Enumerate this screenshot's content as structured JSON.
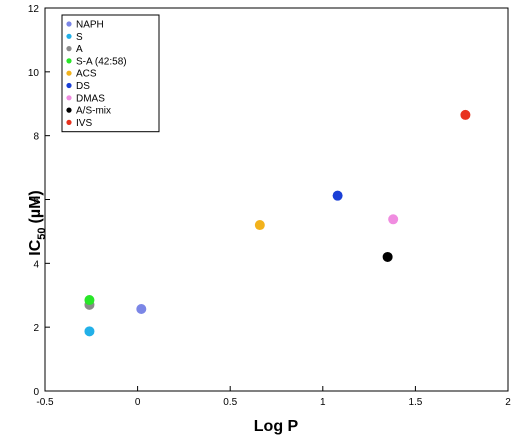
{
  "chart_data": {
    "type": "scatter",
    "xlabel": "Log P",
    "ylabel_main": "IC",
    "ylabel_sub": "50",
    "ylabel_unit": "(µM)",
    "xlim": [
      -0.5,
      2
    ],
    "ylim": [
      0,
      12
    ],
    "x_ticks": [
      -0.5,
      0,
      0.5,
      1,
      1.5,
      2
    ],
    "x_tick_labels": [
      "-0.5",
      "0",
      "0.5",
      "1",
      "1.5",
      "2"
    ],
    "y_ticks": [
      0,
      2,
      4,
      6,
      8,
      10,
      12
    ],
    "y_tick_labels": [
      "0",
      "2",
      "4",
      "6",
      "8",
      "10",
      "12"
    ],
    "grid": false,
    "legend_position": "top-left",
    "series": [
      {
        "name": "NAPH",
        "color": "#7b86e6",
        "x": 0.02,
        "y": 2.57
      },
      {
        "name": "S",
        "color": "#22b0e8",
        "x": -0.26,
        "y": 1.87
      },
      {
        "name": "A",
        "color": "#8a8a8a",
        "x": -0.26,
        "y": 2.7
      },
      {
        "name": "S-A (42:58)",
        "color": "#28e628",
        "x": -0.26,
        "y": 2.85
      },
      {
        "name": "ACS",
        "color": "#f2b21c",
        "x": 0.66,
        "y": 5.2
      },
      {
        "name": "DS",
        "color": "#1a3fd6",
        "x": 1.08,
        "y": 6.12
      },
      {
        "name": "DMAS",
        "color": "#f08ce0",
        "x": 1.38,
        "y": 5.38
      },
      {
        "name": "A/S-mix",
        "color": "#000000",
        "x": 1.35,
        "y": 4.2
      },
      {
        "name": "IVS",
        "color": "#e8321e",
        "x": 1.77,
        "y": 8.65
      }
    ]
  }
}
